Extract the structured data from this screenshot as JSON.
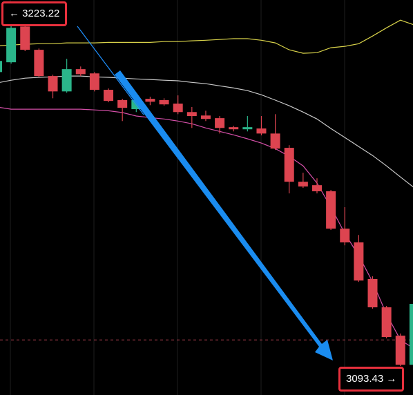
{
  "chart_data": {
    "type": "candlestick",
    "up_color": "#2bb58a",
    "down_color": "#dd4450",
    "ylim": [
      3082.5,
      3231.6
    ],
    "open": [
      3204.4,
      3208.1,
      3221.6,
      3212.8,
      3202.9,
      3197.1,
      3205.5,
      3203.9,
      3197.7,
      3193.8,
      3190.4,
      3194.3,
      3193.8,
      3192.5,
      3189.3,
      3188.0,
      3187.0,
      3183.6,
      3182.8,
      3183.1,
      3181.2,
      3175.8,
      3163.0,
      3161.7,
      3159.4,
      3145.3,
      3140.1,
      3126.3,
      3115.6,
      3104.9,
      3093.9
    ],
    "high": [
      3210.7,
      3222.7,
      3223.22,
      3213.3,
      3203.4,
      3209.4,
      3206.5,
      3204.4,
      3198.2,
      3194.3,
      3195.8,
      3195.1,
      3194.5,
      3195.6,
      3191.2,
      3189.8,
      3187.8,
      3184.1,
      3187.8,
      3187.8,
      3188.5,
      3176.8,
      3166.4,
      3164.3,
      3159.9,
      3153.4,
      3142.9,
      3127.3,
      3116.1,
      3105.7,
      3119.5
    ],
    "low": [
      3202.9,
      3207.6,
      3212.3,
      3202.4,
      3194.5,
      3196.6,
      3202.9,
      3197.1,
      3193.0,
      3185.9,
      3189.3,
      3191.9,
      3191.7,
      3188.5,
      3183.3,
      3185.9,
      3181.2,
      3182.0,
      3182.0,
      3180.5,
      3175.0,
      3158.6,
      3160.7,
      3158.6,
      3144.8,
      3139.0,
      3125.2,
      3115.1,
      3103.9,
      3093.43,
      3093.7
    ],
    "close": [
      3208.6,
      3221.1,
      3212.8,
      3202.9,
      3197.1,
      3205.5,
      3203.6,
      3197.7,
      3193.5,
      3190.9,
      3193.8,
      3193.2,
      3192.2,
      3189.3,
      3187.8,
      3186.7,
      3183.3,
      3182.8,
      3183.6,
      3181.2,
      3175.5,
      3163.0,
      3161.2,
      3159.4,
      3145.3,
      3140.1,
      3125.7,
      3115.6,
      3104.4,
      3093.9,
      3116.9
    ],
    "lines": [
      {
        "color": "#d8d24a",
        "values": [
          3214.3,
          3214.6,
          3214.9,
          3215.1,
          3215.1,
          3215.4,
          3215.4,
          3215.4,
          3215.6,
          3215.6,
          3215.6,
          3215.6,
          3215.9,
          3215.9,
          3216.2,
          3216.4,
          3216.7,
          3217.0,
          3217.0,
          3216.4,
          3215.4,
          3212.8,
          3211.5,
          3211.7,
          3213.6,
          3214.1,
          3215.1,
          3218.0,
          3221.1,
          3224.0,
          3222.2
        ]
      },
      {
        "color": "#c8c8c8",
        "values": [
          3200.3,
          3201.3,
          3202.1,
          3202.4,
          3202.6,
          3202.9,
          3202.9,
          3202.6,
          3202.4,
          3202.1,
          3201.8,
          3201.6,
          3201.3,
          3201.1,
          3200.5,
          3200.0,
          3199.2,
          3198.4,
          3197.4,
          3195.8,
          3193.8,
          3191.7,
          3189.3,
          3186.7,
          3183.1,
          3179.7,
          3176.3,
          3172.9,
          3169.0,
          3164.8,
          3160.7
        ]
      },
      {
        "color": "#d44fa8",
        "values": [
          3191.2,
          3190.4,
          3190.4,
          3190.4,
          3190.4,
          3190.4,
          3190.4,
          3190.1,
          3189.8,
          3189.1,
          3187.8,
          3187.2,
          3186.7,
          3185.9,
          3184.9,
          3183.3,
          3182.0,
          3180.7,
          3179.2,
          3177.6,
          3175.5,
          3172.6,
          3169.0,
          3162.5,
          3153.4,
          3143.5,
          3135.1,
          3125.2,
          3113.0,
          3103.3,
          3099.9
        ]
      }
    ],
    "price_line": 3103.3,
    "price_line_color": "#b04050",
    "annotations": [
      "← 3223.22",
      "3093.43 →"
    ]
  }
}
